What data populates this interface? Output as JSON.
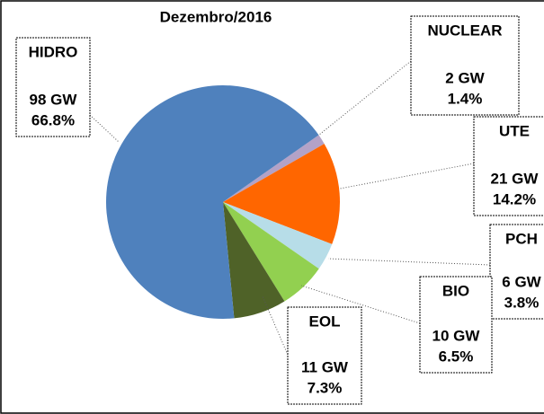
{
  "chart_data": {
    "type": "pie",
    "title": "Dezembro/2016",
    "categories": [
      "NUCLEAR",
      "UTE",
      "PCH",
      "BIO",
      "EOL",
      "HIDRO"
    ],
    "values": [
      1.4,
      14.2,
      3.8,
      6.5,
      7.3,
      66.8
    ],
    "value_labels": [
      "1.4%",
      "14.2%",
      "3.8%",
      "6.5%",
      "7.3%",
      "66.8%"
    ],
    "capacity_labels": [
      "2 GW",
      "21 GW",
      "6 GW",
      "10 GW",
      "11 GW",
      "98 GW"
    ],
    "colors": [
      "#b3a2c7",
      "#ff6600",
      "#b7dde8",
      "#92d050",
      "#4f6228",
      "#4f81bd"
    ]
  }
}
